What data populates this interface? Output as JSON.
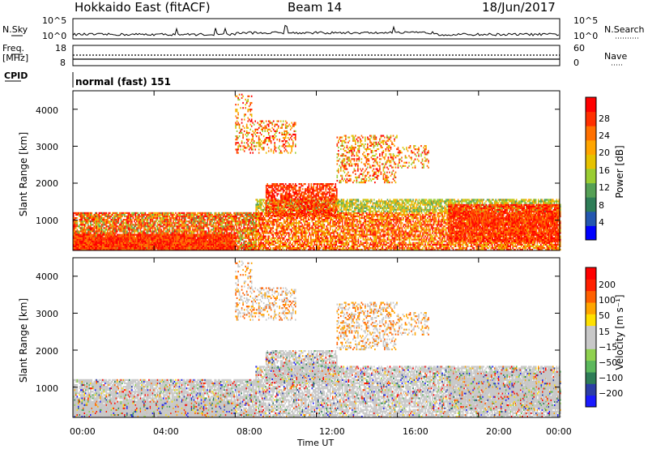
{
  "header": {
    "station": "Hokkaido East (fitACF)",
    "beam": "Beam 14",
    "date": "18/Jun/2017"
  },
  "noise_panel": {
    "left_label": "N.Sky",
    "right_label": "N.Search",
    "left_ticks": [
      "10^5",
      "10^0"
    ],
    "right_ticks": [
      "10^5",
      "10^0"
    ]
  },
  "freq_panel": {
    "left_label_1": "Freq.",
    "left_label_2": "[MHz]",
    "left_ticks": [
      "18",
      "8"
    ],
    "right_label": "Nave",
    "right_ticks": [
      "60",
      "0"
    ]
  },
  "cpid_panel": {
    "label": "CPID",
    "value": "normal (fast) 151"
  },
  "chart_data": [
    {
      "type": "heatmap",
      "name": "power",
      "ylabel": "Slant Range [km]",
      "ylim": [
        180,
        4500
      ],
      "yticks": [
        1000,
        2000,
        3000,
        4000
      ],
      "xlim": [
        0,
        24
      ],
      "colorbar": {
        "label": "Power [dB]",
        "ticks": [
          4,
          8,
          12,
          16,
          20,
          24,
          28
        ],
        "range": [
          0,
          30
        ],
        "colors": [
          "#0000ff",
          "#2457b0",
          "#2e7d57",
          "#55a055",
          "#9acd32",
          "#e6c200",
          "#ffa500",
          "#ff7000",
          "#ff3000",
          "#ff0000"
        ]
      }
    },
    {
      "type": "heatmap",
      "name": "velocity",
      "ylabel": "Slant Range [km]",
      "ylim": [
        180,
        4500
      ],
      "yticks": [
        1000,
        2000,
        3000,
        4000
      ],
      "xlabel": "Time UT",
      "xlim": [
        0,
        24
      ],
      "xticks": [
        "00:00",
        "04:00",
        "08:00",
        "12:00",
        "16:00",
        "20:00",
        "00:00"
      ],
      "colorbar": {
        "label": "Velocity [m s⁻¹]",
        "ticks": [
          "200",
          "100",
          "50",
          "15",
          "−15",
          "−50",
          "−100",
          "−200"
        ],
        "colors": [
          "#1a1aff",
          "#2c3ea6",
          "#2e7d57",
          "#5cb85c",
          "#8fd14f",
          "#c8c8c8",
          "#c8c8c8",
          "#ffe000",
          "#ffa500",
          "#ff6000",
          "#ff2000",
          "#ff0000"
        ]
      }
    }
  ]
}
